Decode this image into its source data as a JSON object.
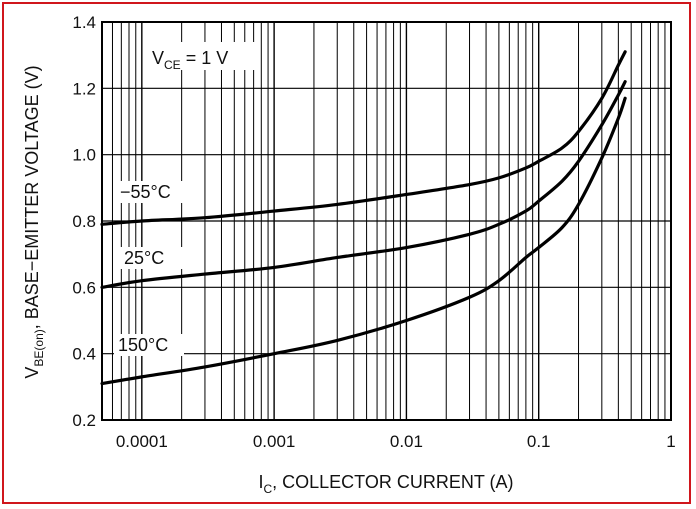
{
  "chart_data": {
    "type": "line",
    "xscale": "log",
    "xlim": [
      5e-05,
      1
    ],
    "ylim": [
      0.2,
      1.4
    ],
    "grid": true,
    "x_tick_labels": [
      "0.0001",
      "0.001",
      "0.01",
      "0.1",
      "1"
    ],
    "y_tick_labels": [
      "0.2",
      "0.4",
      "0.6",
      "0.8",
      "1.0",
      "1.2",
      "1.4"
    ],
    "y_ticks": [
      0.2,
      0.4,
      0.6,
      0.8,
      1.0,
      1.2,
      1.4
    ],
    "x_ticks": [
      0.0001,
      0.001,
      0.01,
      0.1,
      1
    ],
    "xlabel": {
      "main": "I",
      "sub": "C",
      "rest": ", COLLECTOR CURRENT (A)"
    },
    "ylabel": {
      "main": "V",
      "sub": "BE(on)",
      "rest": ", BASE−EMITTER VOLTAGE (V)"
    },
    "annotation": {
      "main": "V",
      "sub": "CE",
      "rest": " = 1 V"
    },
    "series": [
      {
        "name": "−55°C",
        "x": [
          5e-05,
          0.0001,
          0.0003,
          0.001,
          0.003,
          0.01,
          0.03,
          0.05,
          0.08,
          0.1,
          0.15,
          0.2,
          0.3,
          0.4,
          0.45
        ],
        "y": [
          0.79,
          0.8,
          0.81,
          0.83,
          0.85,
          0.88,
          0.91,
          0.93,
          0.96,
          0.98,
          1.02,
          1.07,
          1.17,
          1.27,
          1.31
        ]
      },
      {
        "name": "25°C",
        "x": [
          5e-05,
          0.0001,
          0.0003,
          0.001,
          0.003,
          0.01,
          0.03,
          0.05,
          0.08,
          0.1,
          0.15,
          0.2,
          0.3,
          0.4,
          0.45
        ],
        "y": [
          0.6,
          0.62,
          0.64,
          0.66,
          0.69,
          0.72,
          0.76,
          0.79,
          0.83,
          0.86,
          0.92,
          0.98,
          1.09,
          1.18,
          1.22
        ]
      },
      {
        "name": "150°C",
        "x": [
          5e-05,
          0.0001,
          0.0003,
          0.001,
          0.003,
          0.01,
          0.03,
          0.05,
          0.08,
          0.1,
          0.15,
          0.2,
          0.3,
          0.4,
          0.45
        ],
        "y": [
          0.31,
          0.33,
          0.36,
          0.4,
          0.44,
          0.5,
          0.57,
          0.62,
          0.69,
          0.72,
          0.78,
          0.85,
          0.99,
          1.11,
          1.17
        ]
      }
    ]
  }
}
